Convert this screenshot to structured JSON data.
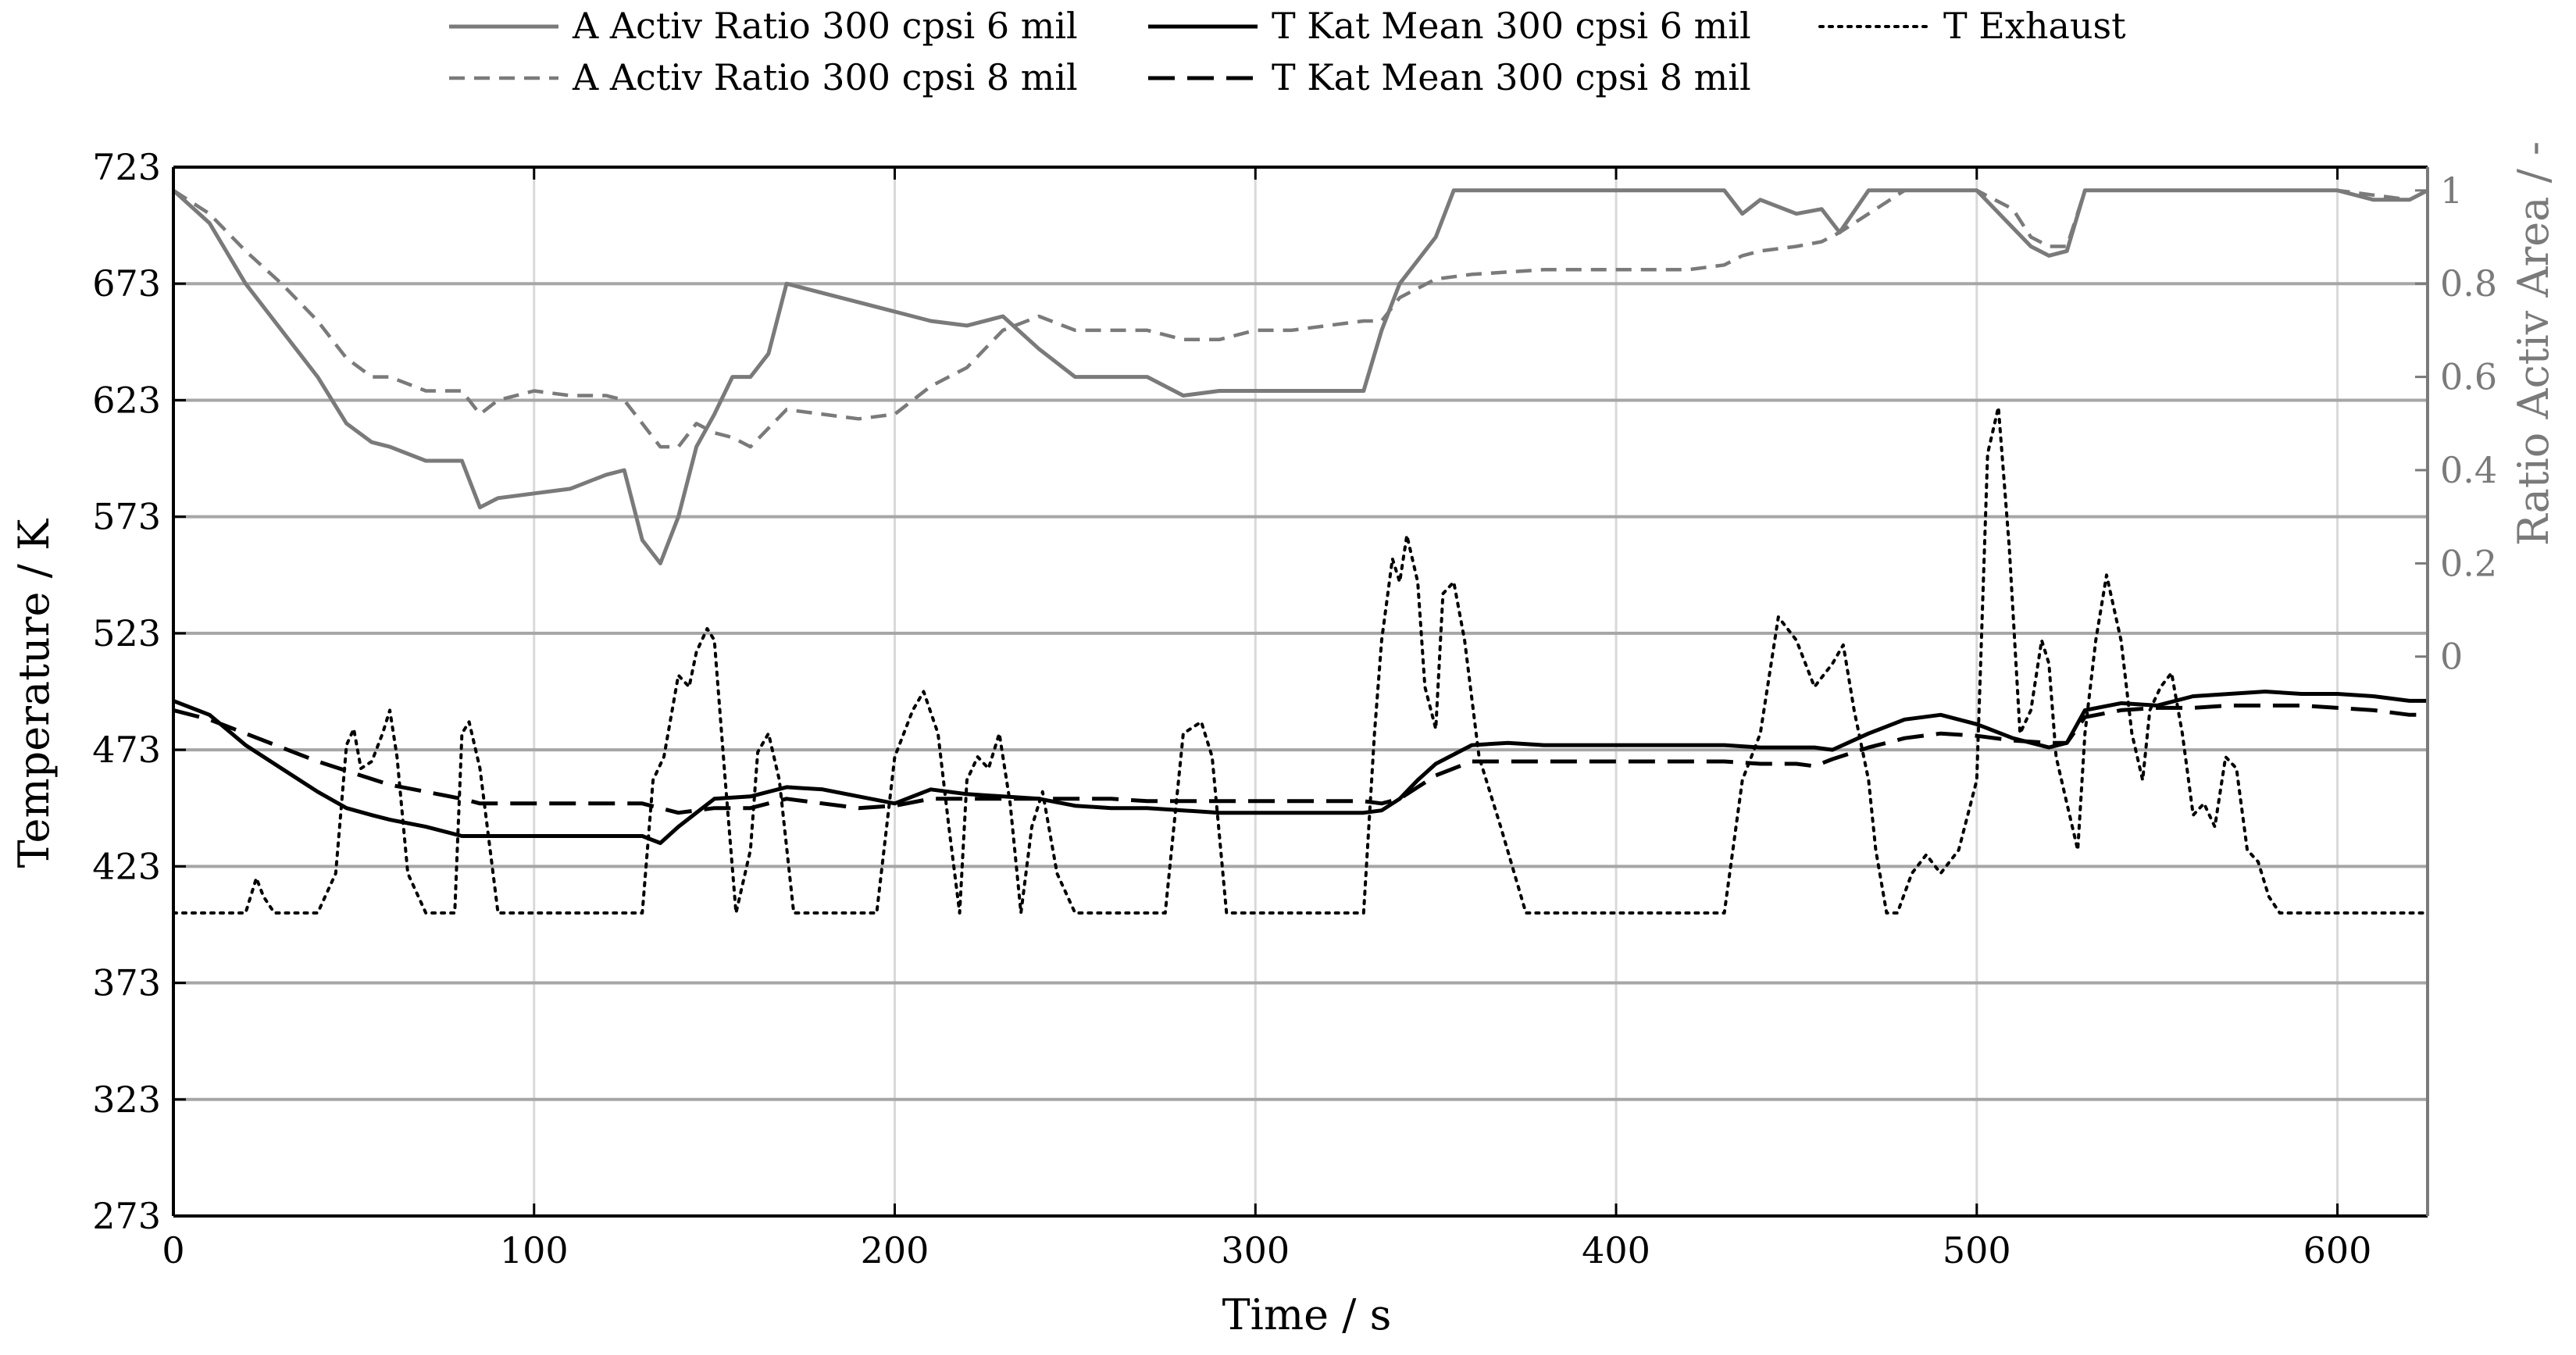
{
  "chart_data": {
    "type": "line",
    "xlabel": "Time / s",
    "ylabel": "Temperature / K",
    "y2label": "Ratio Activ Area / -",
    "xlim": [
      0,
      625
    ],
    "ylim": [
      273,
      723
    ],
    "y2lim": [
      -1.2,
      1.05
    ],
    "xticks": [
      0,
      100,
      200,
      300,
      400,
      500,
      600
    ],
    "yticks": [
      273,
      323,
      373,
      423,
      473,
      523,
      573,
      623,
      673,
      723
    ],
    "y2ticks": [
      0,
      0.2,
      0.4,
      0.6,
      0.8,
      1
    ],
    "grid": true,
    "legend_position": "top",
    "series": [
      {
        "name": "A Activ Ratio 300 cpsi 6 mil",
        "axis": "right",
        "color": "#7a7a7a",
        "dash": "solid",
        "x": [
          0,
          10,
          20,
          30,
          40,
          48,
          55,
          60,
          70,
          80,
          85,
          90,
          100,
          110,
          120,
          125,
          130,
          135,
          140,
          145,
          150,
          155,
          160,
          165,
          170,
          180,
          190,
          200,
          210,
          220,
          230,
          240,
          250,
          260,
          270,
          280,
          290,
          300,
          310,
          320,
          330,
          335,
          340,
          345,
          350,
          355,
          360,
          380,
          400,
          420,
          430,
          435,
          440,
          450,
          457,
          462,
          470,
          480,
          490,
          500,
          510,
          515,
          520,
          525,
          530,
          540,
          560,
          580,
          600,
          610,
          620,
          625
        ],
        "y": [
          1.0,
          0.93,
          0.8,
          0.7,
          0.6,
          0.5,
          0.46,
          0.45,
          0.42,
          0.42,
          0.32,
          0.34,
          0.35,
          0.36,
          0.39,
          0.4,
          0.25,
          0.2,
          0.3,
          0.45,
          0.52,
          0.6,
          0.6,
          0.65,
          0.8,
          0.78,
          0.76,
          0.74,
          0.72,
          0.71,
          0.73,
          0.66,
          0.6,
          0.6,
          0.6,
          0.56,
          0.57,
          0.57,
          0.57,
          0.57,
          0.57,
          0.7,
          0.8,
          0.85,
          0.9,
          1.0,
          1.0,
          1.0,
          1.0,
          1.0,
          1.0,
          0.95,
          0.98,
          0.95,
          0.96,
          0.91,
          1.0,
          1.0,
          1.0,
          1.0,
          0.92,
          0.88,
          0.86,
          0.87,
          1.0,
          1.0,
          1.0,
          1.0,
          1.0,
          0.98,
          0.98,
          1.0
        ]
      },
      {
        "name": "A Activ Ratio 300 cpsi 8 mil",
        "axis": "right",
        "color": "#7a7a7a",
        "dash": "dashed",
        "x": [
          0,
          10,
          20,
          30,
          40,
          48,
          55,
          60,
          70,
          80,
          85,
          90,
          100,
          110,
          120,
          125,
          130,
          135,
          140,
          145,
          150,
          155,
          160,
          170,
          180,
          190,
          200,
          210,
          220,
          230,
          240,
          250,
          260,
          270,
          280,
          290,
          300,
          310,
          320,
          330,
          335,
          340,
          345,
          350,
          360,
          380,
          400,
          420,
          430,
          435,
          440,
          450,
          457,
          462,
          470,
          480,
          490,
          500,
          510,
          515,
          520,
          525,
          530,
          540,
          560,
          580,
          600,
          610,
          620,
          625
        ],
        "y": [
          1.0,
          0.95,
          0.87,
          0.8,
          0.72,
          0.64,
          0.6,
          0.6,
          0.57,
          0.57,
          0.52,
          0.55,
          0.57,
          0.56,
          0.56,
          0.55,
          0.5,
          0.45,
          0.45,
          0.5,
          0.48,
          0.47,
          0.45,
          0.53,
          0.52,
          0.51,
          0.52,
          0.58,
          0.62,
          0.7,
          0.73,
          0.7,
          0.7,
          0.7,
          0.68,
          0.68,
          0.7,
          0.7,
          0.71,
          0.72,
          0.72,
          0.77,
          0.79,
          0.81,
          0.82,
          0.83,
          0.83,
          0.83,
          0.84,
          0.86,
          0.87,
          0.88,
          0.89,
          0.91,
          0.95,
          1.0,
          1.0,
          1.0,
          0.96,
          0.9,
          0.88,
          0.88,
          1.0,
          1.0,
          1.0,
          1.0,
          1.0,
          0.99,
          0.98,
          1.0
        ]
      },
      {
        "name": "T Kat Mean 300 cpsi 6 mil",
        "axis": "left",
        "color": "#000000",
        "dash": "solid",
        "x": [
          0,
          10,
          20,
          30,
          40,
          48,
          55,
          60,
          70,
          80,
          85,
          90,
          100,
          110,
          120,
          130,
          135,
          140,
          150,
          160,
          170,
          180,
          190,
          200,
          210,
          220,
          230,
          240,
          250,
          260,
          270,
          280,
          290,
          300,
          310,
          320,
          330,
          335,
          340,
          345,
          350,
          360,
          370,
          380,
          400,
          420,
          430,
          440,
          450,
          455,
          460,
          470,
          480,
          490,
          500,
          510,
          520,
          525,
          530,
          540,
          550,
          560,
          570,
          580,
          590,
          600,
          610,
          620,
          625
        ],
        "y": [
          494,
          488,
          475,
          465,
          455,
          448,
          445,
          443,
          440,
          436,
          436,
          436,
          436,
          436,
          436,
          436,
          433,
          440,
          452,
          453,
          457,
          456,
          453,
          450,
          456,
          454,
          453,
          452,
          449,
          448,
          448,
          447,
          446,
          446,
          446,
          446,
          446,
          447,
          452,
          460,
          467,
          475,
          476,
          475,
          475,
          475,
          475,
          474,
          474,
          474,
          473,
          480,
          486,
          488,
          484,
          478,
          474,
          476,
          490,
          493,
          492,
          496,
          497,
          498,
          497,
          497,
          496,
          494,
          494
        ]
      },
      {
        "name": "T Kat Mean 300 cpsi 8 mil",
        "axis": "left",
        "color": "#000000",
        "dash": "longdash",
        "x": [
          0,
          10,
          20,
          30,
          40,
          50,
          60,
          70,
          80,
          85,
          90,
          100,
          110,
          120,
          130,
          140,
          150,
          160,
          170,
          180,
          190,
          200,
          210,
          220,
          230,
          240,
          250,
          260,
          270,
          280,
          290,
          300,
          310,
          320,
          330,
          335,
          340,
          345,
          350,
          360,
          370,
          380,
          400,
          420,
          430,
          440,
          450,
          455,
          460,
          470,
          480,
          490,
          500,
          510,
          520,
          525,
          530,
          540,
          550,
          560,
          570,
          580,
          590,
          600,
          610,
          620,
          625
        ],
        "y": [
          490,
          486,
          480,
          474,
          468,
          463,
          458,
          455,
          452,
          450,
          450,
          450,
          450,
          450,
          450,
          446,
          448,
          448,
          452,
          450,
          448,
          449,
          452,
          452,
          452,
          452,
          452,
          452,
          451,
          451,
          451,
          451,
          451,
          451,
          451,
          450,
          452,
          457,
          462,
          468,
          468,
          468,
          468,
          468,
          468,
          467,
          467,
          466,
          469,
          474,
          478,
          480,
          479,
          477,
          476,
          476,
          487,
          490,
          491,
          491,
          492,
          492,
          492,
          491,
          490,
          488,
          488
        ]
      },
      {
        "name": "T Exhaust",
        "axis": "left",
        "color": "#000000",
        "dash": "dotted",
        "x": [
          0,
          10,
          20,
          23,
          25,
          28,
          30,
          40,
          45,
          48,
          50,
          52,
          55,
          58,
          60,
          62,
          65,
          70,
          78,
          80,
          82,
          85,
          90,
          100,
          110,
          120,
          130,
          133,
          136,
          140,
          143,
          145,
          148,
          150,
          153,
          156,
          160,
          162,
          165,
          168,
          172,
          178,
          185,
          195,
          200,
          205,
          208,
          212,
          215,
          218,
          220,
          223,
          226,
          229,
          232,
          235,
          238,
          241,
          245,
          250,
          260,
          270,
          275,
          280,
          285,
          288,
          292,
          296,
          300,
          310,
          320,
          330,
          333,
          335,
          338,
          340,
          342,
          345,
          347,
          350,
          352,
          355,
          358,
          362,
          368,
          375,
          385,
          400,
          420,
          430,
          435,
          440,
          445,
          450,
          455,
          460,
          463,
          466,
          470,
          472,
          475,
          478,
          482,
          486,
          490,
          495,
          500,
          503,
          506,
          509,
          512,
          515,
          518,
          520,
          522,
          525,
          528,
          530,
          533,
          536,
          540,
          543,
          546,
          548,
          551,
          554,
          557,
          560,
          563,
          566,
          569,
          572,
          575,
          578,
          581,
          584,
          587,
          590,
          593,
          596,
          600,
          605,
          610,
          615,
          620,
          625
        ],
        "y": [
          403,
          403,
          403,
          418,
          410,
          403,
          403,
          403,
          420,
          475,
          482,
          465,
          468,
          480,
          490,
          470,
          420,
          403,
          403,
          480,
          485,
          465,
          403,
          403,
          403,
          403,
          403,
          460,
          470,
          505,
          500,
          515,
          525,
          520,
          460,
          403,
          430,
          472,
          480,
          460,
          403,
          403,
          403,
          403,
          470,
          490,
          498,
          480,
          440,
          403,
          460,
          470,
          465,
          480,
          450,
          403,
          440,
          455,
          420,
          403,
          403,
          403,
          403,
          480,
          485,
          470,
          403,
          403,
          403,
          403,
          403,
          403,
          480,
          520,
          555,
          545,
          565,
          545,
          500,
          482,
          540,
          545,
          520,
          470,
          440,
          403,
          403,
          403,
          403,
          403,
          460,
          480,
          530,
          520,
          500,
          510,
          518,
          490,
          460,
          430,
          403,
          403,
          420,
          428,
          420,
          430,
          460,
          600,
          620,
          560,
          480,
          490,
          520,
          510,
          470,
          450,
          430,
          480,
          520,
          548,
          520,
          480,
          460,
          490,
          500,
          506,
          480,
          445,
          450,
          440,
          470,
          465,
          430,
          425,
          410,
          403,
          403,
          403,
          403,
          403,
          403,
          403,
          403,
          403,
          403,
          403
        ]
      }
    ]
  }
}
